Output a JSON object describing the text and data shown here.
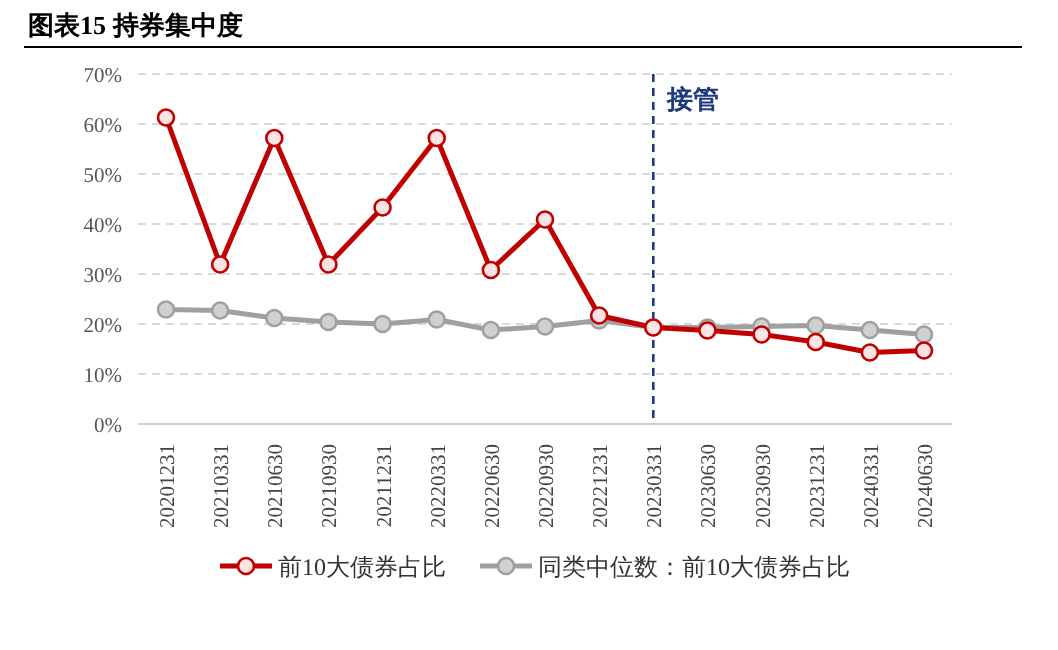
{
  "chart_data": {
    "type": "line",
    "title": "图表15 持券集中度",
    "categories": [
      "20201231",
      "20210331",
      "20210630",
      "20210930",
      "20211231",
      "20220331",
      "20220630",
      "20220930",
      "20221231",
      "20230331",
      "20230630",
      "20230930",
      "20231231",
      "20240331",
      "20240630"
    ],
    "series": [
      {
        "name": "前10大债券占比",
        "color": "#c00000",
        "values": [
          61.3,
          31.9,
          57.2,
          31.9,
          43.3,
          57.2,
          30.8,
          40.9,
          21.7,
          19.3,
          18.7,
          17.9,
          16.4,
          14.3,
          14.7
        ]
      },
      {
        "name": "同类中位数：前10大债券占比",
        "color": "#a0a0a0",
        "values": [
          22.9,
          22.7,
          21.2,
          20.4,
          20.0,
          20.9,
          18.8,
          19.5,
          20.7,
          19.3,
          19.3,
          19.5,
          19.7,
          18.8,
          17.9
        ]
      }
    ],
    "ylim": [
      0,
      70
    ],
    "yticks": [
      {
        "value": 0,
        "label": "0%"
      },
      {
        "value": 10,
        "label": "10%"
      },
      {
        "value": 20,
        "label": "20%"
      },
      {
        "value": 30,
        "label": "30%"
      },
      {
        "value": 40,
        "label": "40%"
      },
      {
        "value": 50,
        "label": "50%"
      },
      {
        "value": 60,
        "label": "60%"
      },
      {
        "value": 70,
        "label": "70%"
      }
    ],
    "ref_lines": [
      {
        "axis": "x",
        "value": "20230331",
        "label": "接管",
        "color": "#1f3a7a",
        "line_style": "dashed"
      }
    ],
    "grid": "y",
    "legend": "bottom",
    "marker": "circle",
    "line_style": "solid"
  }
}
